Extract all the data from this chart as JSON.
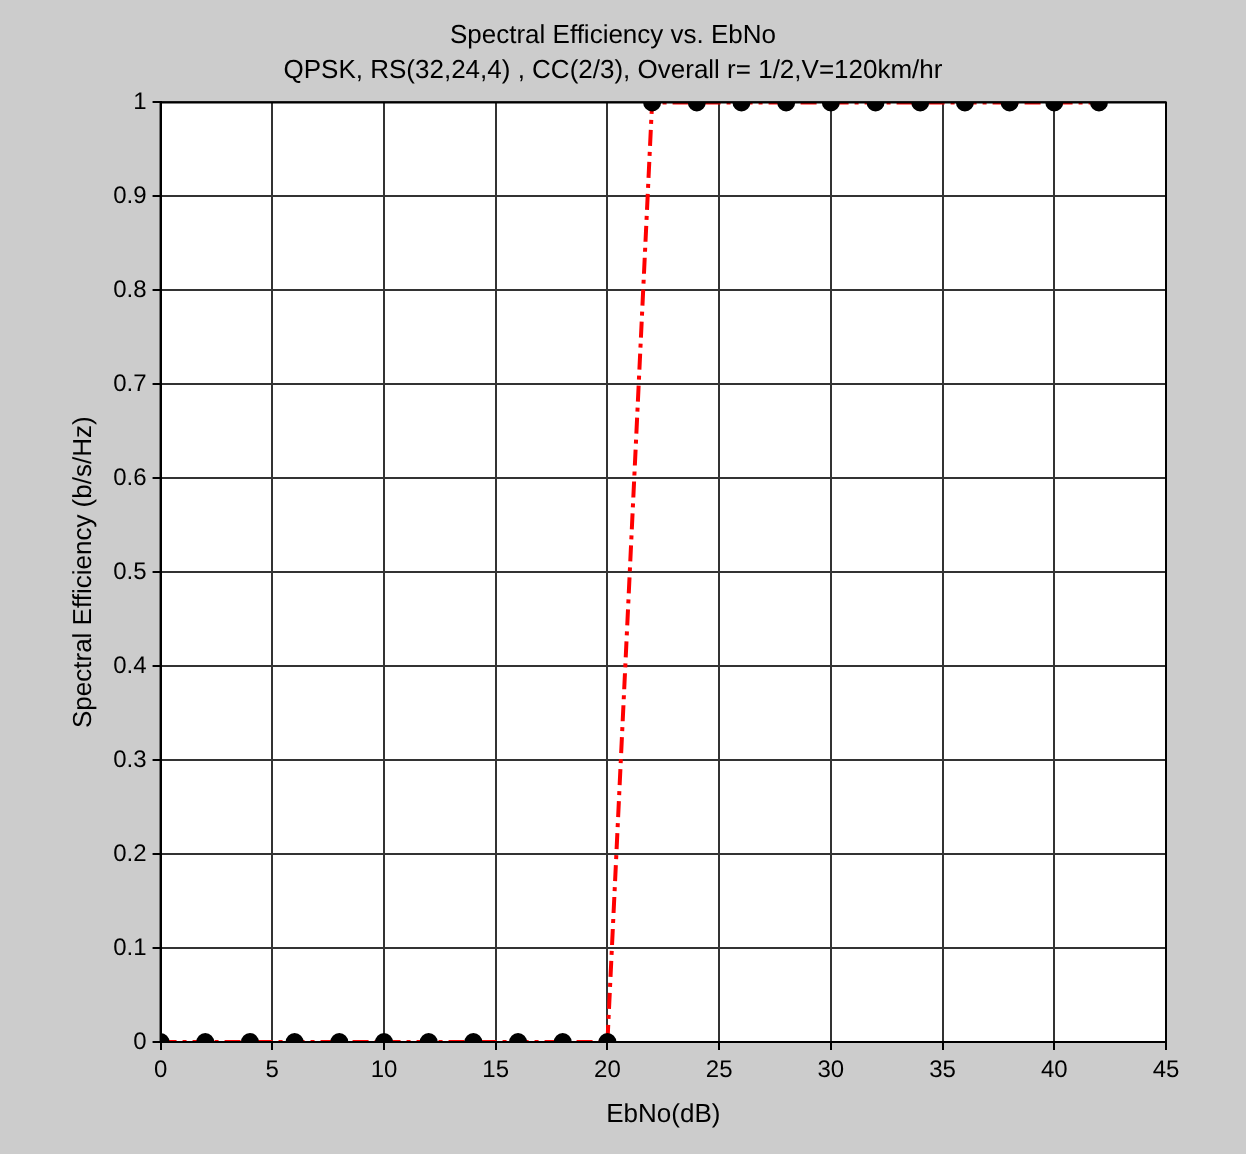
{
  "chart_data": {
    "type": "line",
    "title": "Spectral Efficiency vs. EbNo",
    "subtitle": "QPSK, RS(32,24,4) , CC(2/3), Overall r= 1/2,V=120km/hr",
    "xlabel": "EbNo(dB)",
    "ylabel": "Spectral Efficiency (b/s/Hz)",
    "x": [
      0,
      2,
      4,
      6,
      8,
      10,
      12,
      14,
      16,
      18,
      20,
      22,
      24,
      26,
      28,
      30,
      32,
      34,
      36,
      38,
      40,
      42
    ],
    "series": [
      {
        "color": "#ff0000",
        "values": [
          0,
          0,
          0,
          0,
          0,
          0,
          0,
          0,
          0,
          0,
          0,
          1,
          1,
          1,
          1,
          1,
          1,
          1,
          1,
          1,
          1,
          1
        ]
      }
    ],
    "xlim": [
      0,
      45
    ],
    "xticks": [
      0,
      5,
      10,
      15,
      20,
      25,
      30,
      35,
      40,
      45
    ],
    "ylim": [
      0,
      1
    ],
    "yticks": [
      0,
      0.1,
      0.2,
      0.3,
      0.4,
      0.5,
      0.6,
      0.7,
      0.8,
      0.9,
      1
    ],
    "grid": true,
    "legend": false,
    "marker": "circle",
    "line_style": "dashed"
  }
}
